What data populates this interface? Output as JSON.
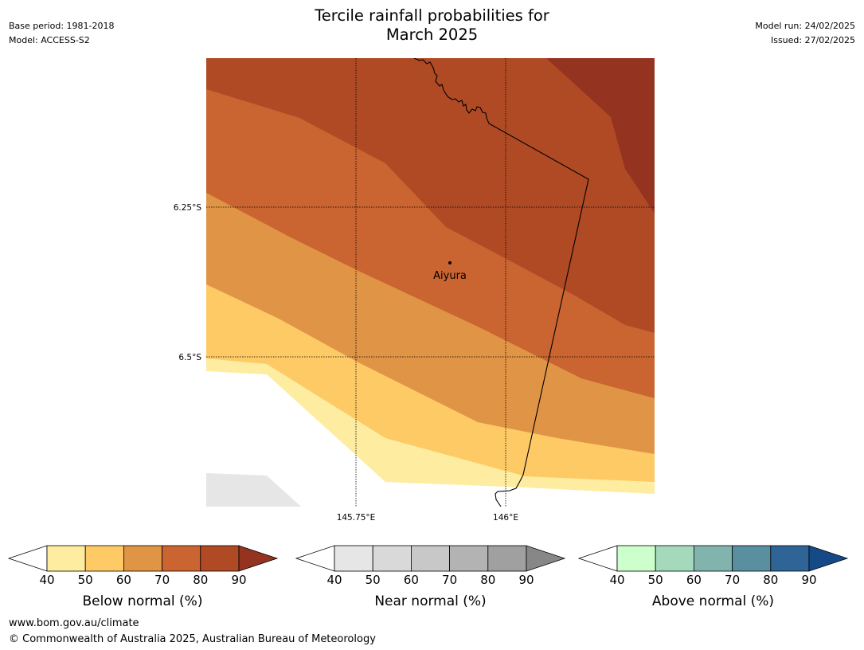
{
  "header": {
    "base_period": "Base period: 1981-2018",
    "model": "Model: ACCESS-S2",
    "model_run": "Model run: 24/02/2025",
    "issued": "Issued: 27/02/2025",
    "title_line1": "Tercile rainfall probabilities for",
    "title_line2": "March 2025"
  },
  "map": {
    "lat_labels": [
      "6.25°S",
      "6.5°S"
    ],
    "lon_labels": [
      "145.75°E",
      "146°E"
    ],
    "place_label": "Aiyura",
    "colors": {
      "below_40_50": "#FEECA0",
      "below_50_60": "#FDCA66",
      "below_60_70": "#E09445",
      "below_70_80": "#CA6431",
      "below_80_90": "#AF4A25",
      "below_90_plus": "#943320",
      "near_40_50": "#E6E6E6"
    }
  },
  "colorbars": [
    {
      "label": "Below normal (%)",
      "ticks": [
        "40",
        "50",
        "60",
        "70",
        "80",
        "90"
      ],
      "colors": [
        "#FEECA0",
        "#FDCA66",
        "#E09445",
        "#CA6431",
        "#AF4A25"
      ],
      "over_color": "#943320",
      "under_color": "#FFFFFF"
    },
    {
      "label": "Near normal (%)",
      "ticks": [
        "40",
        "50",
        "60",
        "70",
        "80",
        "90"
      ],
      "colors": [
        "#E6E6E6",
        "#D9D9D9",
        "#C8C8C8",
        "#B3B3B3",
        "#A0A0A0"
      ],
      "over_color": "#878787",
      "under_color": "#FFFFFF"
    },
    {
      "label": "Above normal (%)",
      "ticks": [
        "40",
        "50",
        "60",
        "70",
        "80",
        "90"
      ],
      "colors": [
        "#CCFFCC",
        "#A5D9BC",
        "#82B4AE",
        "#5A8FA0",
        "#2E6496"
      ],
      "over_color": "#164A86",
      "under_color": "#FFFFFF"
    }
  ],
  "footer": {
    "url": "www.bom.gov.au/climate",
    "copyright": "© Commonwealth of Australia 2025, Australian Bureau of Meteorology"
  }
}
